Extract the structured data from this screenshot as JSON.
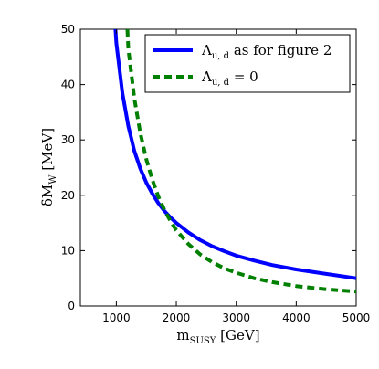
{
  "chart_data": {
    "type": "line",
    "xlabel": "m",
    "xlabel_sub": "SUSY",
    "xlabel_unit": " [GeV]",
    "ylabel": "δM",
    "ylabel_sub": "W",
    "ylabel_unit": " [MeV]",
    "xlim": [
      400,
      5000
    ],
    "ylim": [
      0,
      50
    ],
    "xticks": [
      "1000",
      "2000",
      "3000",
      "4000",
      "5000"
    ],
    "yticks": [
      "0",
      "10",
      "20",
      "30",
      "40",
      "50"
    ],
    "legend_position": "top-right",
    "grid": false,
    "series": [
      {
        "name": "Λ",
        "name_sub": "u, d",
        "name_rest": " as for figure 2",
        "color": "#0000ff",
        "style": "solid",
        "x": [
          985,
          1000,
          1100,
          1200,
          1300,
          1400,
          1500,
          1600,
          1700,
          1800,
          1900,
          2000,
          2200,
          2400,
          2600,
          2800,
          3000,
          3300,
          3600,
          4000,
          4500,
          5000
        ],
        "y": [
          50,
          47.5,
          38.5,
          32.5,
          28,
          24.8,
          22.3,
          20.3,
          18.6,
          17.2,
          16.0,
          15.0,
          13.3,
          11.9,
          10.8,
          9.9,
          9.1,
          8.2,
          7.4,
          6.6,
          5.8,
          5.0
        ]
      },
      {
        "name": "Λ",
        "name_sub": "u, d",
        "name_rest": " = 0",
        "color": "#008000",
        "style": "dashed",
        "x": [
          1185,
          1200,
          1300,
          1400,
          1500,
          1600,
          1700,
          1800,
          1900,
          2000,
          2200,
          2400,
          2600,
          2800,
          3000,
          3300,
          3600,
          4000,
          4500,
          5000
        ],
        "y": [
          50,
          46.5,
          37.5,
          31.2,
          26.5,
          22.8,
          19.8,
          17.4,
          15.4,
          13.7,
          11.2,
          9.3,
          7.9,
          6.8,
          6.0,
          5.0,
          4.3,
          3.6,
          3.0,
          2.6
        ]
      }
    ]
  }
}
